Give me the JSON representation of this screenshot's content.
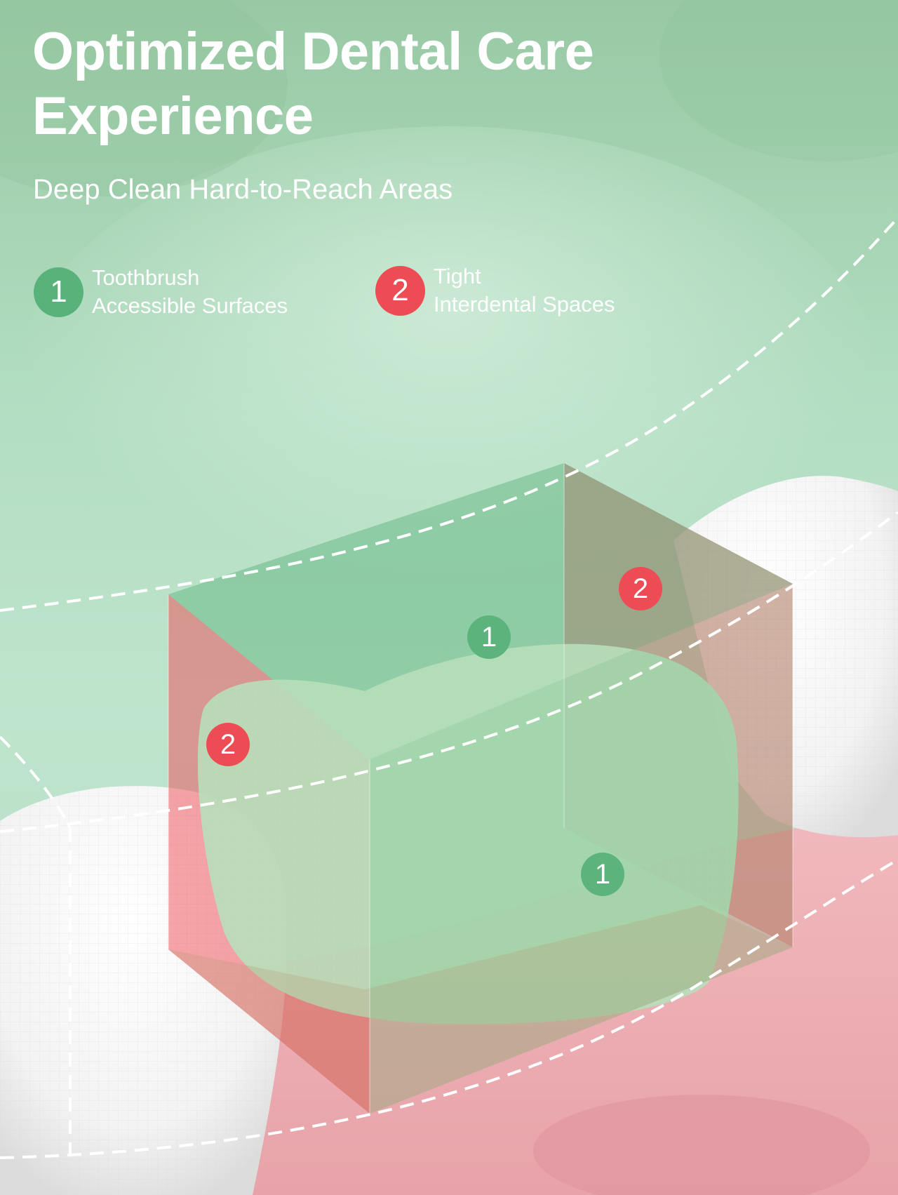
{
  "title_line1": "Optimized Dental Care",
  "title_line2": "Experience",
  "subtitle": "Deep Clean Hard-to-Reach Areas",
  "legend": [
    {
      "number": "1",
      "line1": "Toothbrush",
      "line2": "Accessible Surfaces",
      "color": "#59b27a"
    },
    {
      "number": "2",
      "line1": "Tight",
      "line2": "Interdental Spaces",
      "color": "#ee4c54"
    }
  ],
  "markers": {
    "m1_top": "1",
    "m1_front": "1",
    "m2_left": "2",
    "m2_right": "2"
  },
  "colors": {
    "background": "#a9d8ba",
    "gum": "#e8a6ad",
    "accessible_zone": "#59b27a",
    "interdental_zone": "#ee4c54",
    "text": "#ffffff"
  }
}
